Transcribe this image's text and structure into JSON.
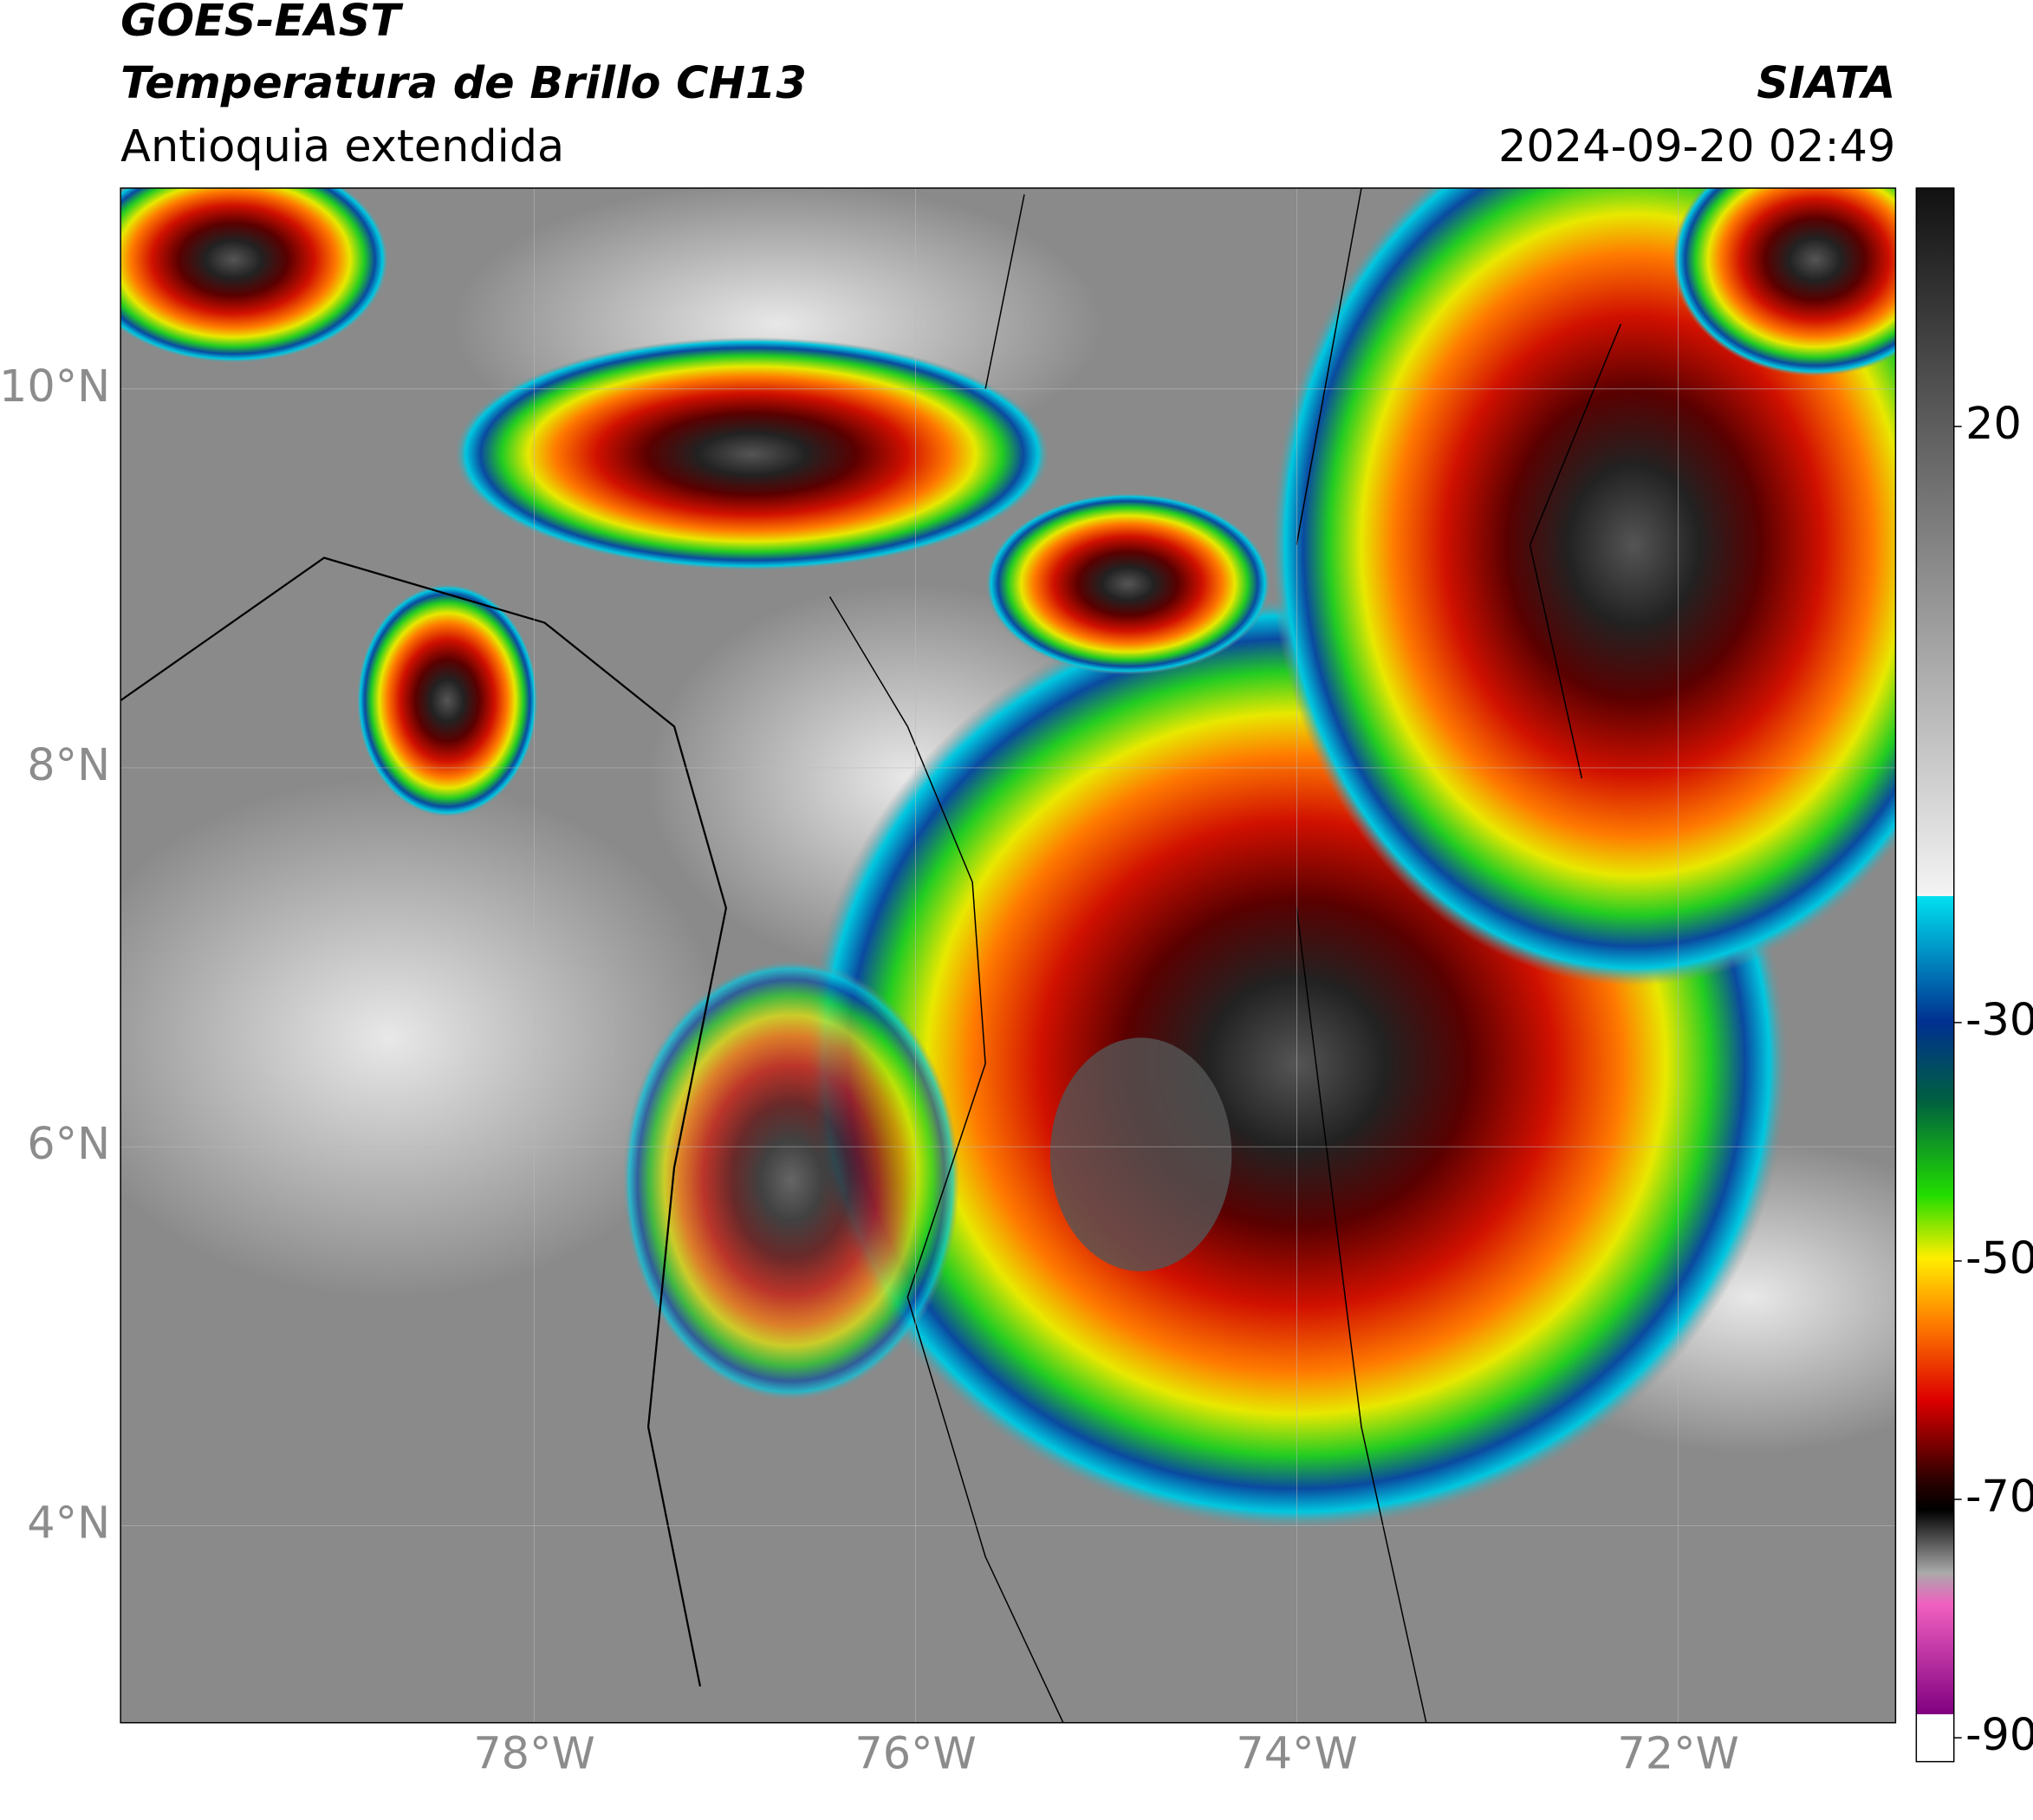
{
  "header": {
    "title": "GOES-EAST",
    "subtitle": "Temperatura de Brillo CH13",
    "region": "Antioquia extendida",
    "source": "SIATA",
    "datetime": "2024-09-20 02:49"
  },
  "map": {
    "xlim": [
      -80.17,
      -70.86
    ],
    "ylim": [
      2.96,
      11.06
    ],
    "xticks": [
      {
        "value": -78,
        "label": "78°W"
      },
      {
        "value": -76,
        "label": "76°W"
      },
      {
        "value": -74,
        "label": "74°W"
      },
      {
        "value": -72,
        "label": "72°W"
      }
    ],
    "yticks": [
      {
        "value": 4,
        "label": "4°N"
      },
      {
        "value": 6,
        "label": "6°N"
      },
      {
        "value": 8,
        "label": "8°N"
      },
      {
        "value": 10,
        "label": "10°N"
      }
    ],
    "colorbar": {
      "lim": [
        -92,
        40
      ],
      "ticks": [
        20,
        -30,
        -50,
        -70,
        -90
      ]
    }
  }
}
